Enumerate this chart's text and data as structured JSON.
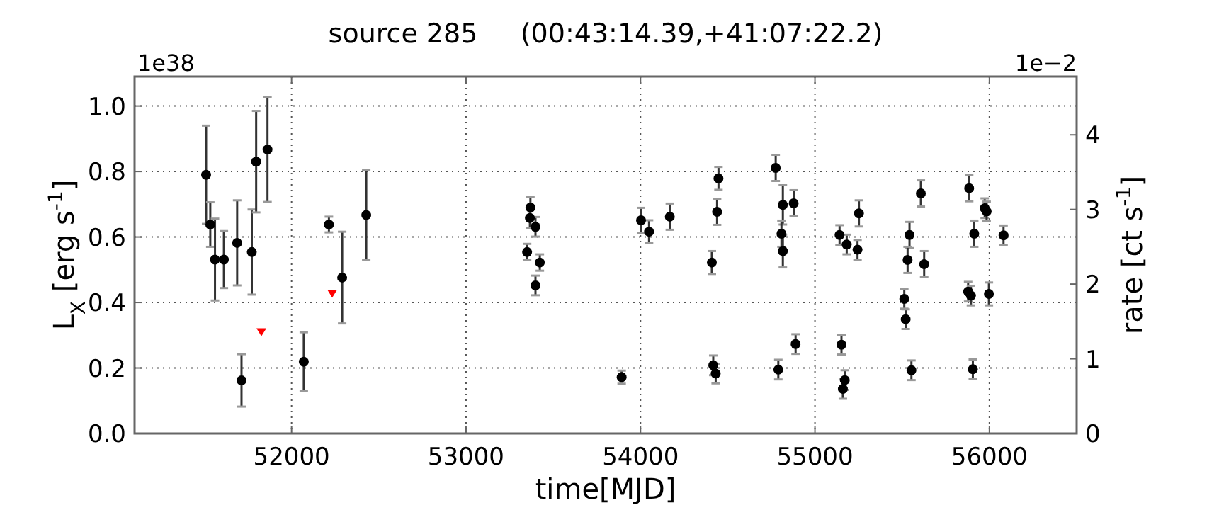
{
  "chart_data": {
    "type": "scatter",
    "title": "source 285     (00:43:14.39,+41:07:22.2)",
    "xlabel": "time[MJD]",
    "ylabel": "L$_{X}$ [erg s$^{-1}$]",
    "y2label": "rate [ct s$^{-1}$]",
    "annotations": [
      "1e38",
      "1e−2"
    ],
    "xlim": [
      51100,
      56500
    ],
    "xticks": [
      52000,
      53000,
      54000,
      55000,
      56000
    ],
    "ylim": [
      0,
      1.09
    ],
    "yticks": [
      {
        "value": 0,
        "label": "0.0"
      },
      0.2,
      0.4,
      0.6,
      0.8,
      {
        "value": 1,
        "label": "1.0"
      }
    ],
    "y2lim": [
      0,
      4.78
    ],
    "y2ticks": [
      0,
      1,
      2,
      3,
      4
    ],
    "grid": true,
    "marker": "circle",
    "series": [
      {
        "color": "#000000",
        "x": [
          51510,
          51534,
          51561,
          51612,
          51688,
          51713,
          51772,
          51797,
          51862,
          52070,
          52214,
          52290,
          52428,
          53350,
          53369,
          53366,
          53398,
          53423,
          53398,
          53892,
          54003,
          54049,
          54168,
          54409,
          54439,
          54447,
          54417,
          54431,
          54775,
          54790,
          54816,
          54808,
          54816,
          54878,
          54889,
          55141,
          55182,
          55244,
          55252,
          55152,
          55171,
          55160,
          55542,
          55531,
          55512,
          55520,
          55553,
          55607,
          55626,
          55884,
          55913,
          55878,
          55894,
          55905,
          55973,
          55984,
          55997,
          56081
        ],
        "values": [
          0.79,
          0.638,
          0.531,
          0.531,
          0.582,
          0.162,
          0.554,
          0.83,
          0.867,
          0.219,
          0.638,
          0.476,
          0.667,
          0.554,
          0.69,
          0.658,
          0.631,
          0.522,
          0.452,
          0.172,
          0.651,
          0.616,
          0.662,
          0.522,
          0.677,
          0.779,
          0.208,
          0.183,
          0.811,
          0.195,
          0.698,
          0.61,
          0.557,
          0.703,
          0.273,
          0.606,
          0.577,
          0.561,
          0.672,
          0.271,
          0.163,
          0.136,
          0.606,
          0.53,
          0.411,
          0.349,
          0.193,
          0.733,
          0.517,
          0.749,
          0.61,
          0.433,
          0.421,
          0.196,
          0.688,
          0.678,
          0.426,
          0.605
        ],
        "errors": [
          0.15,
          0.068,
          0.125,
          0.087,
          0.13,
          0.08,
          0.13,
          0.155,
          0.16,
          0.09,
          0.024,
          0.14,
          0.137,
          0.025,
          0.032,
          0.03,
          0.03,
          0.025,
          0.03,
          0.02,
          0.038,
          0.035,
          0.04,
          0.035,
          0.04,
          0.035,
          0.03,
          0.03,
          0.04,
          0.03,
          0.06,
          0.04,
          0.05,
          0.04,
          0.03,
          0.03,
          0.03,
          0.03,
          0.04,
          0.03,
          0.03,
          0.03,
          0.04,
          0.04,
          0.03,
          0.03,
          0.03,
          0.04,
          0.04,
          0.04,
          0.04,
          0.03,
          0.03,
          0.03,
          0.03,
          0.03,
          0.035,
          0.03
        ]
      },
      {
        "color": "#ff0000",
        "marker": "triangle",
        "x": [
          51827,
          52233
        ],
        "values": [
          0.312,
          0.43
        ]
      }
    ]
  }
}
